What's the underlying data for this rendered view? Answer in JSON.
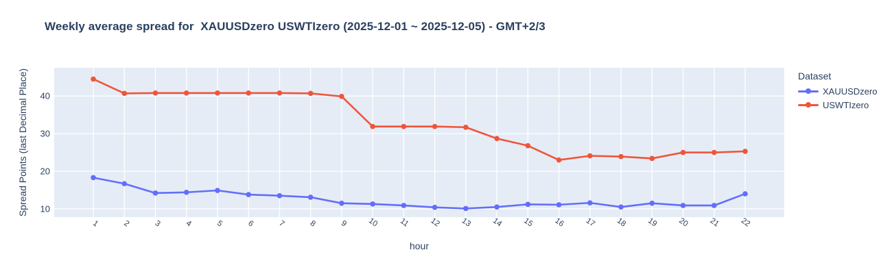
{
  "chart_data": {
    "type": "line",
    "title": "Weekly average spread for  XAUUSDzero USWTIzero (2025-12-01 ~ 2025-12-05) - GMT+2/3",
    "xlabel": "hour",
    "ylabel": "Spread Points (last Decimal Place)",
    "legend_title": "Dataset",
    "x": [
      1,
      2,
      3,
      4,
      5,
      6,
      7,
      8,
      9,
      10,
      11,
      12,
      13,
      14,
      15,
      16,
      17,
      18,
      19,
      20,
      21,
      22
    ],
    "series": [
      {
        "name": "XAUUSDzero",
        "color": "#636EFA",
        "values": [
          18.3,
          16.7,
          14.2,
          14.4,
          14.9,
          13.8,
          13.5,
          13.1,
          11.5,
          11.3,
          10.9,
          10.4,
          10.1,
          10.5,
          11.2,
          11.1,
          11.6,
          10.5,
          11.5,
          10.9,
          10.9,
          14.0
        ]
      },
      {
        "name": "USWTIzero",
        "color": "#EF553B",
        "values": [
          44.5,
          40.7,
          40.8,
          40.8,
          40.8,
          40.8,
          40.8,
          40.7,
          39.9,
          31.9,
          31.9,
          31.9,
          31.7,
          28.7,
          26.8,
          23.0,
          24.1,
          23.9,
          23.4,
          25.0,
          25.0,
          25.3
        ]
      }
    ],
    "yticks": [
      10,
      20,
      30,
      40
    ],
    "ylim": [
      7.8,
      47.5
    ],
    "grid": true,
    "legend_position": "right",
    "plot_bgcolor": "#E5ECF6",
    "paper_bgcolor": "#FFFFFF",
    "gridcolor": "#FFFFFF",
    "text_color": "#2a3f5f",
    "tick_angle": 35
  }
}
